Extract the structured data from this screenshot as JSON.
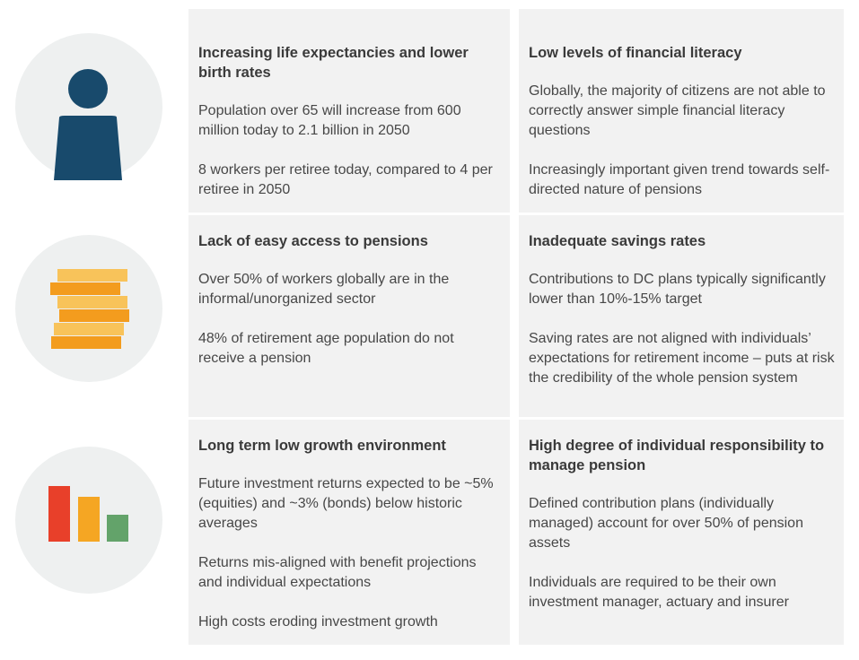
{
  "rows": [
    {
      "icon": "person-icon",
      "left": {
        "heading": "Increasing life expectancies and lower birth rates",
        "paragraphs": [
          "Population over 65 will increase from 600 million today to 2.1 billion in 2050",
          "8 workers per retiree today, compared to 4 per retiree in 2050"
        ]
      },
      "right": {
        "heading": "Low levels of financial literacy",
        "paragraphs": [
          "Globally, the majority of citizens are not able to correctly answer simple financial literacy questions",
          "Increasingly important  given trend towards self-directed nature of pensions"
        ]
      }
    },
    {
      "icon": "coin-stack-icon",
      "left": {
        "heading": "Lack of easy access to pensions",
        "paragraphs": [
          "Over 50% of workers globally are in the informal/unorganized sector",
          "48% of retirement age population do not receive a pension"
        ]
      },
      "right": {
        "heading": "Inadequate savings rates",
        "paragraphs": [
          "Contributions to DC plans typically significantly lower than 10%-15% target",
          "Saving rates are not aligned with individuals’  expectations for retirement income – puts at risk the credibility of the whole pension system"
        ]
      }
    },
    {
      "icon": "declining-bar-chart-icon",
      "left": {
        "heading": "Long term low growth environment",
        "paragraphs": [
          "Future investment returns expected to be ~5% (equities) and ~3% (bonds) below historic averages",
          "Returns mis-aligned with  benefit projections and individual expectations",
          "High costs eroding investment growth"
        ]
      },
      "right": {
        "heading": "High degree of individual responsibility to manage pension",
        "paragraphs": [
          "Defined contribution plans (individually managed) account for over 50% of pension assets",
          "Individuals are required to be their own investment  manager, actuary and insurer"
        ]
      }
    }
  ],
  "colors": {
    "person": "#184a6c",
    "coin_light": "#f8c35a",
    "coin_dark": "#f39c1e",
    "bar_red": "#e8402a",
    "bar_orange": "#f5a623",
    "bar_green": "#63a36a",
    "cell_bg": "#f2f2f2",
    "circle_bg": "#eef0f0"
  }
}
